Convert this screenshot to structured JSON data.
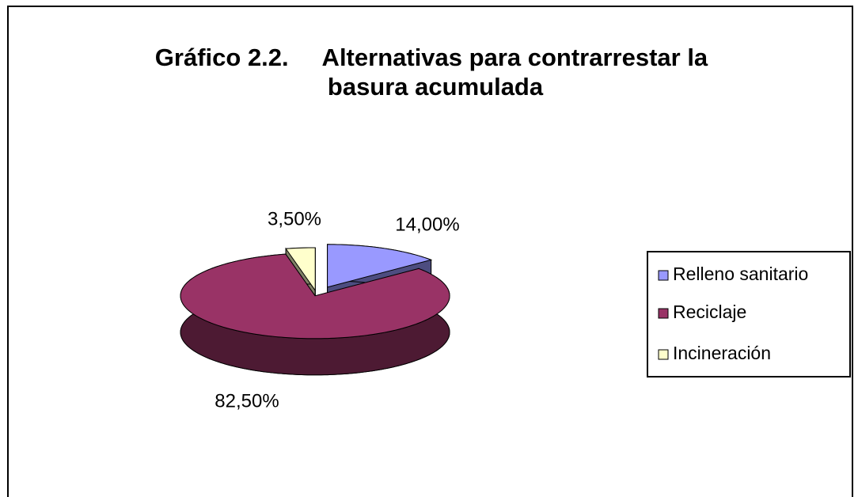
{
  "chart_data": {
    "type": "pie3d",
    "title": [
      "Gráfico 2.2.     Alternativas para contrarrestar la",
      "basura acumulada"
    ],
    "categories": [
      "Relleno sanitario",
      "Reciclaje",
      "Incineración"
    ],
    "values": [
      14,
      82.5,
      3.5
    ],
    "value_labels": [
      "14,00%",
      "82,50%",
      "3,50%"
    ],
    "colors": [
      "#9999ff",
      "#993366",
      "#ffffcc"
    ],
    "legend": "right"
  }
}
